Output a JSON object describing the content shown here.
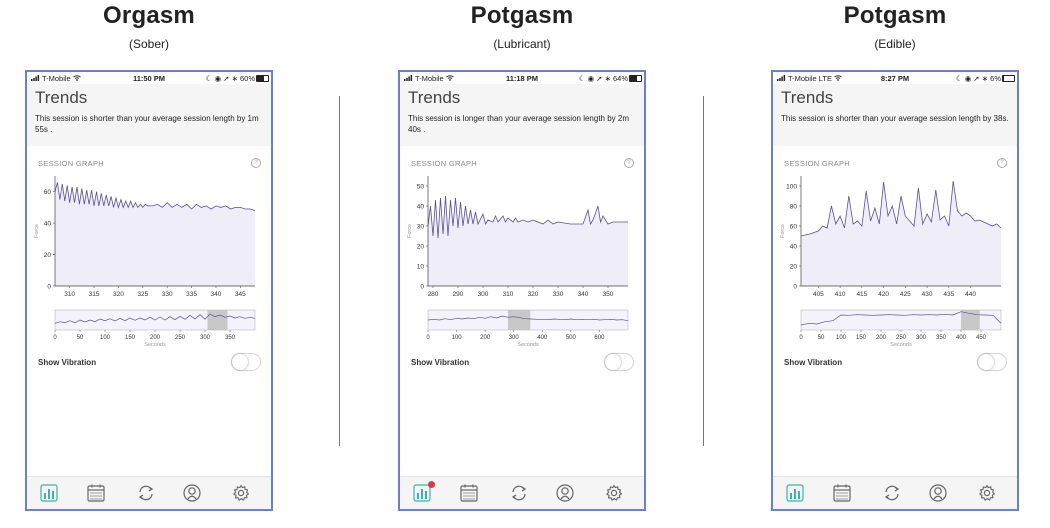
{
  "panels": [
    {
      "title": "Orgasm",
      "subtitle": "(Sober)",
      "status": {
        "carrier": "T-Mobile",
        "time": "11:50 PM",
        "battery": "60%",
        "battery_level": 0.6
      },
      "trends_title": "Trends",
      "message": "This session is shorter than your average session length by 1m 55s .",
      "session_graph_label": "SESSION GRAPH",
      "help_glyph": "?",
      "show_vibration_label": "Show Vibration",
      "vibration_on": false,
      "notification_badge": false,
      "chart_data": {
        "type": "line",
        "ylabel": "Force",
        "xlim": [
          307,
          348
        ],
        "ylim": [
          0,
          70
        ],
        "x_ticks": [
          310,
          315,
          320,
          325,
          330,
          335,
          340,
          345
        ],
        "y_ticks": [
          0,
          20,
          40,
          60
        ],
        "x": [
          307,
          307.5,
          308,
          308.5,
          309,
          309.5,
          310,
          310.5,
          311,
          311.5,
          312,
          312.5,
          313,
          313.5,
          314,
          314.5,
          315,
          315.5,
          316,
          316.5,
          317,
          317.5,
          318,
          318.5,
          319,
          319.5,
          320,
          320.5,
          321,
          321.5,
          322,
          322.5,
          323,
          323.5,
          324,
          324.5,
          325,
          325.5,
          326,
          326.5,
          327,
          328,
          329,
          330,
          331,
          332,
          333,
          334,
          335,
          336,
          337,
          338,
          339,
          340,
          341,
          342,
          343,
          344,
          345,
          346,
          347,
          348
        ],
        "y": [
          60,
          66,
          55,
          65,
          54,
          64,
          53,
          63,
          53,
          63,
          52,
          62,
          52,
          61,
          52,
          61,
          51,
          60,
          51,
          59,
          51,
          58,
          51,
          57,
          50,
          56,
          50,
          55,
          50,
          54,
          50,
          54,
          50,
          53,
          50,
          52,
          50,
          52,
          51,
          51,
          51,
          52,
          50,
          53,
          50,
          52,
          50,
          52,
          49,
          52,
          50,
          51,
          49,
          51,
          50,
          51,
          49,
          50,
          50,
          49,
          49,
          48
        ],
        "mini": {
          "xlim": [
            0,
            400
          ],
          "x_ticks": [
            0,
            50,
            100,
            150,
            200,
            250,
            300,
            350
          ],
          "xlabel": "Seconds",
          "highlight": [
            305,
            345
          ],
          "x": [
            0,
            10,
            20,
            30,
            40,
            50,
            60,
            70,
            80,
            90,
            100,
            110,
            120,
            130,
            140,
            150,
            160,
            170,
            180,
            190,
            200,
            210,
            220,
            230,
            240,
            250,
            260,
            270,
            280,
            290,
            300,
            310,
            320,
            330,
            340,
            350,
            360,
            370,
            380,
            390,
            400
          ],
          "y": [
            20,
            25,
            22,
            28,
            22,
            30,
            24,
            30,
            25,
            33,
            28,
            34,
            27,
            35,
            28,
            36,
            29,
            36,
            30,
            38,
            30,
            39,
            30,
            40,
            31,
            41,
            32,
            44,
            33,
            46,
            32,
            48,
            40,
            45,
            38,
            42,
            36,
            40,
            35,
            38,
            35
          ]
        }
      }
    },
    {
      "title": "Potgasm",
      "subtitle": "(Lubricant)",
      "status": {
        "carrier": "T-Mobile",
        "time": "11:18 PM",
        "battery": "64%",
        "battery_level": 0.64
      },
      "trends_title": "Trends",
      "message": "This session is longer than your average session length by 2m 40s .",
      "session_graph_label": "SESSION GRAPH",
      "help_glyph": "?",
      "show_vibration_label": "Show Vibration",
      "vibration_on": false,
      "notification_badge": true,
      "chart_data": {
        "type": "line",
        "ylabel": "Force",
        "xlim": [
          278,
          358
        ],
        "ylim": [
          0,
          55
        ],
        "x_ticks": [
          280,
          290,
          300,
          310,
          320,
          330,
          340,
          350
        ],
        "y_ticks": [
          0,
          10,
          20,
          30,
          40,
          50
        ],
        "x": [
          278,
          279,
          280,
          281,
          282,
          283,
          284,
          285,
          286,
          287,
          288,
          289,
          290,
          291,
          292,
          293,
          294,
          295,
          296,
          297,
          298,
          300,
          301,
          302,
          304,
          305,
          306,
          308,
          309,
          310,
          312,
          313,
          314,
          316,
          318,
          320,
          322,
          324,
          326,
          328,
          330,
          335,
          340,
          342,
          343,
          344,
          346,
          347,
          348,
          350,
          352,
          354,
          356,
          358
        ],
        "y": [
          30,
          40,
          25,
          43,
          24,
          44,
          26,
          45,
          25,
          43,
          30,
          44,
          29,
          42,
          30,
          40,
          31,
          38,
          31,
          37,
          31,
          36,
          31,
          33,
          32,
          35,
          32,
          35,
          32,
          34,
          32,
          34,
          32,
          33,
          32,
          33,
          32,
          31,
          33,
          31,
          32,
          31,
          31,
          38,
          31,
          33,
          40,
          32,
          35,
          31,
          32,
          32,
          32,
          32
        ],
        "mini": {
          "xlim": [
            0,
            700
          ],
          "x_ticks": [
            0,
            100,
            200,
            300,
            400,
            500,
            600
          ],
          "xlabel": "Seconds",
          "highlight": [
            280,
            358
          ],
          "x": [
            0,
            20,
            40,
            60,
            80,
            100,
            120,
            140,
            160,
            180,
            200,
            220,
            240,
            260,
            280,
            300,
            320,
            340,
            360,
            380,
            400,
            420,
            440,
            460,
            480,
            500,
            520,
            540,
            560,
            580,
            600,
            620,
            640,
            660,
            680,
            700
          ],
          "y": [
            30,
            32,
            30,
            34,
            31,
            35,
            33,
            36,
            34,
            38,
            35,
            40,
            36,
            42,
            38,
            40,
            37,
            34,
            33,
            32,
            32,
            31,
            33,
            32,
            31,
            33,
            31,
            32,
            31,
            32,
            30,
            31,
            32,
            30,
            31,
            28
          ]
        }
      }
    },
    {
      "title": "Potgasm",
      "subtitle": "(Edible)",
      "status": {
        "carrier": "T-Mobile LTE",
        "time": "8:27 PM",
        "battery": "6%",
        "battery_level": 0.06
      },
      "trends_title": "Trends",
      "message": "This session is shorter than your average session length by 38s.",
      "session_graph_label": "SESSION GRAPH",
      "help_glyph": "?",
      "show_vibration_label": "Show Vibration",
      "vibration_on": false,
      "notification_badge": false,
      "chart_data": {
        "type": "line",
        "ylabel": "Force",
        "xlim": [
          401,
          447
        ],
        "ylim": [
          0,
          110
        ],
        "x_ticks": [
          405,
          410,
          415,
          420,
          425,
          430,
          435,
          440
        ],
        "y_ticks": [
          0,
          20,
          40,
          60,
          80,
          100
        ],
        "x": [
          401,
          403,
          405,
          406,
          407,
          408,
          409,
          410,
          411,
          412,
          413,
          414,
          415,
          416,
          417,
          418,
          419,
          420,
          421,
          422,
          423,
          424,
          425,
          426,
          427,
          428,
          429,
          430,
          431,
          432,
          433,
          434,
          435,
          436,
          437,
          438,
          439,
          440,
          441,
          442,
          443,
          444,
          445,
          446,
          447
        ],
        "y": [
          50,
          52,
          55,
          60,
          58,
          80,
          62,
          70,
          58,
          90,
          62,
          65,
          60,
          95,
          65,
          78,
          62,
          104,
          70,
          80,
          62,
          90,
          70,
          65,
          60,
          98,
          62,
          72,
          64,
          96,
          66,
          70,
          60,
          105,
          75,
          70,
          73,
          70,
          65,
          66,
          64,
          62,
          60,
          62,
          58
        ],
        "mini": {
          "xlim": [
            0,
            500
          ],
          "x_ticks": [
            0,
            50,
            100,
            150,
            200,
            250,
            300,
            350,
            400,
            450
          ],
          "xlabel": "Seconds",
          "highlight": [
            400,
            447
          ],
          "x": [
            0,
            20,
            40,
            60,
            80,
            100,
            120,
            140,
            160,
            180,
            200,
            220,
            240,
            260,
            280,
            300,
            320,
            340,
            360,
            380,
            400,
            420,
            440,
            460,
            480,
            500
          ],
          "y": [
            15,
            20,
            18,
            25,
            28,
            45,
            44,
            46,
            45,
            44,
            45,
            46,
            45,
            44,
            46,
            45,
            46,
            45,
            47,
            45,
            55,
            50,
            46,
            45,
            44,
            20
          ]
        }
      }
    }
  ]
}
